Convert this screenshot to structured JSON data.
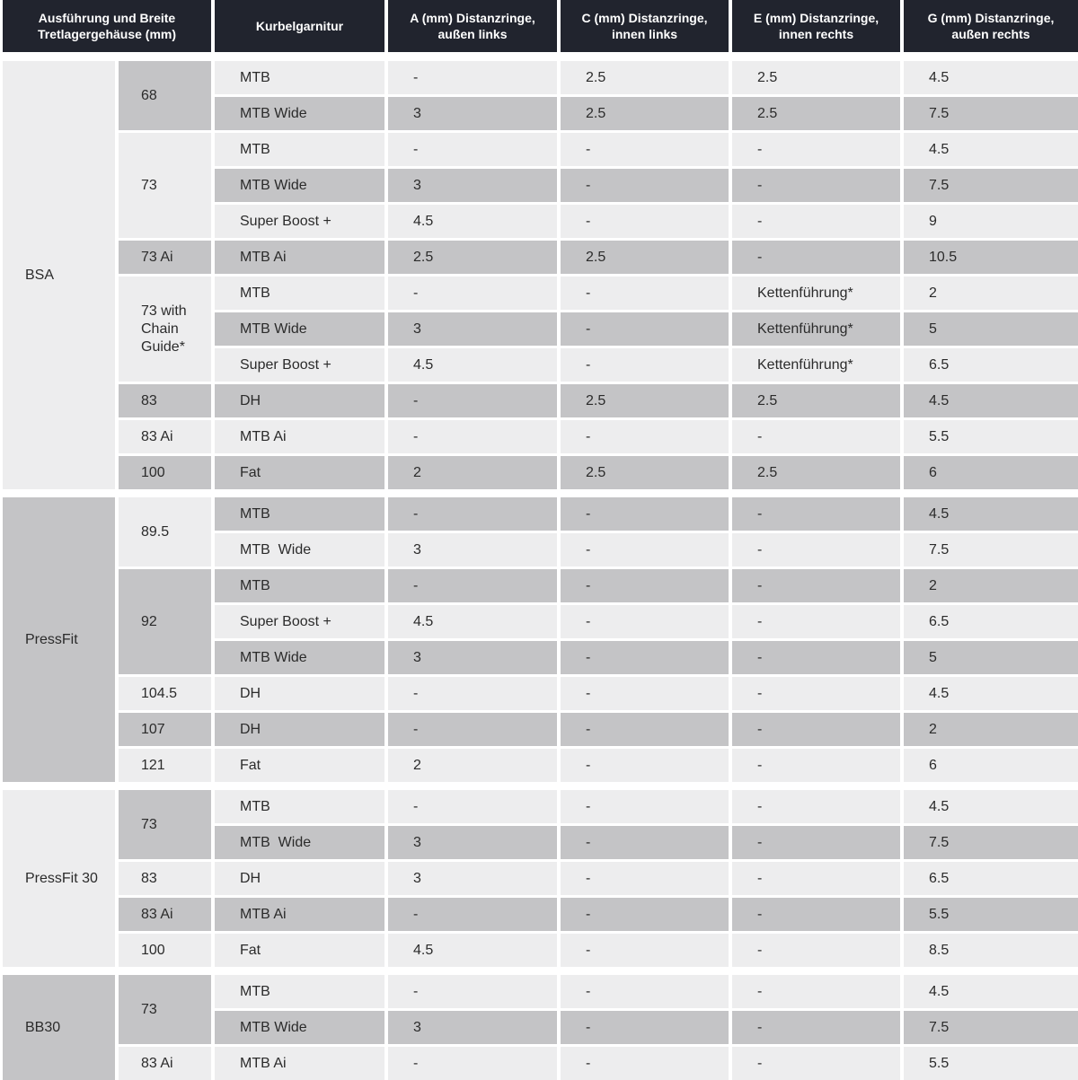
{
  "header": {
    "col_bottombracket": "Ausführung und Breite Tretlagergehäuse (mm)",
    "col_crankset": "Kurbelgarnitur",
    "col_a": "A (mm) Distanzringe, außen links",
    "col_c": "C (mm) Distanzringe, innen links",
    "col_e": "E (mm) Distanzringe, innen rechts",
    "col_g": "G (mm) Distanzringe, außen rechts"
  },
  "colors": {
    "header_bg": "#21242e",
    "header_text": "#ffffff",
    "row_light": "#ededee",
    "row_dark": "#c4c4c6",
    "text": "#2b2b2b",
    "gap": "#ffffff"
  },
  "sections": [
    {
      "label": "BSA",
      "shade": "light",
      "groups": [
        {
          "width": "68",
          "shade": "dark",
          "rows": [
            {
              "crank": "MTB",
              "a": "-",
              "c": "2.5",
              "e": "2.5",
              "g": "4.5",
              "shade": "light"
            },
            {
              "crank": "MTB Wide",
              "a": "3",
              "c": "2.5",
              "e": "2.5",
              "g": "7.5",
              "shade": "dark"
            }
          ]
        },
        {
          "width": "73",
          "shade": "light",
          "rows": [
            {
              "crank": "MTB",
              "a": "-",
              "c": "-",
              "e": "-",
              "g": "4.5",
              "shade": "light"
            },
            {
              "crank": "MTB Wide",
              "a": "3",
              "c": "-",
              "e": "-",
              "g": "7.5",
              "shade": "dark"
            },
            {
              "crank": "Super Boost +",
              "a": "4.5",
              "c": "-",
              "e": "-",
              "g": "9",
              "shade": "light"
            }
          ]
        },
        {
          "width": "73 Ai",
          "shade": "dark",
          "rows": [
            {
              "crank": "MTB Ai",
              "a": "2.5",
              "c": "2.5",
              "e": "-",
              "g": "10.5",
              "shade": "dark"
            }
          ]
        },
        {
          "width": "73 with Chain Guide*",
          "shade": "light",
          "rows": [
            {
              "crank": "MTB",
              "a": "-",
              "c": "-",
              "e": "Kettenführung*",
              "g": "2",
              "shade": "light"
            },
            {
              "crank": "MTB Wide",
              "a": "3",
              "c": "-",
              "e": "Kettenführung*",
              "g": "5",
              "shade": "dark"
            },
            {
              "crank": "Super Boost +",
              "a": "4.5",
              "c": "-",
              "e": "Kettenführung*",
              "g": "6.5",
              "shade": "light"
            }
          ]
        },
        {
          "width": "83",
          "shade": "dark",
          "rows": [
            {
              "crank": "DH",
              "a": "-",
              "c": "2.5",
              "e": "2.5",
              "g": "4.5",
              "shade": "dark"
            }
          ]
        },
        {
          "width": "83 Ai",
          "shade": "light",
          "rows": [
            {
              "crank": "MTB Ai",
              "a": "-",
              "c": "-",
              "e": "-",
              "g": "5.5",
              "shade": "light"
            }
          ]
        },
        {
          "width": "100",
          "shade": "dark",
          "rows": [
            {
              "crank": "Fat",
              "a": "2",
              "c": "2.5",
              "e": "2.5",
              "g": "6",
              "shade": "dark"
            }
          ]
        }
      ]
    },
    {
      "label": "PressFit",
      "shade": "dark",
      "groups": [
        {
          "width": "89.5",
          "shade": "light",
          "rows": [
            {
              "crank": "MTB",
              "a": "-",
              "c": "-",
              "e": "-",
              "g": "4.5",
              "shade": "dark"
            },
            {
              "crank": "MTB  Wide",
              "a": "3",
              "c": "-",
              "e": "-",
              "g": "7.5",
              "shade": "light"
            }
          ]
        },
        {
          "width": "92",
          "shade": "dark",
          "rows": [
            {
              "crank": "MTB",
              "a": "-",
              "c": "-",
              "e": "-",
              "g": "2",
              "shade": "dark"
            },
            {
              "crank": "Super Boost +",
              "a": "4.5",
              "c": "-",
              "e": "-",
              "g": "6.5",
              "shade": "light"
            },
            {
              "crank": "MTB Wide",
              "a": "3",
              "c": "-",
              "e": "-",
              "g": "5",
              "shade": "dark"
            }
          ]
        },
        {
          "width": "104.5",
          "shade": "light",
          "rows": [
            {
              "crank": "DH",
              "a": "-",
              "c": "-",
              "e": "-",
              "g": "4.5",
              "shade": "light"
            }
          ]
        },
        {
          "width": "107",
          "shade": "dark",
          "rows": [
            {
              "crank": "DH",
              "a": "-",
              "c": "-",
              "e": "-",
              "g": "2",
              "shade": "dark"
            }
          ]
        },
        {
          "width": "121",
          "shade": "light",
          "rows": [
            {
              "crank": "Fat",
              "a": "2",
              "c": "-",
              "e": "-",
              "g": "6",
              "shade": "light"
            }
          ]
        }
      ]
    },
    {
      "label": "PressFit 30",
      "shade": "light",
      "groups": [
        {
          "width": "73",
          "shade": "dark",
          "rows": [
            {
              "crank": "MTB",
              "a": "-",
              "c": "-",
              "e": "-",
              "g": "4.5",
              "shade": "light"
            },
            {
              "crank": "MTB  Wide",
              "a": "3",
              "c": "-",
              "e": "-",
              "g": "7.5",
              "shade": "dark"
            }
          ]
        },
        {
          "width": "83",
          "shade": "light",
          "rows": [
            {
              "crank": "DH",
              "a": "3",
              "c": "-",
              "e": "-",
              "g": "6.5",
              "shade": "light"
            }
          ]
        },
        {
          "width": "83 Ai",
          "shade": "dark",
          "rows": [
            {
              "crank": "MTB Ai",
              "a": "-",
              "c": "-",
              "e": "-",
              "g": "5.5",
              "shade": "dark"
            }
          ]
        },
        {
          "width": "100",
          "shade": "light",
          "rows": [
            {
              "crank": "Fat",
              "a": "4.5",
              "c": "-",
              "e": "-",
              "g": "8.5",
              "shade": "light"
            }
          ]
        }
      ]
    },
    {
      "label": "BB30",
      "shade": "dark",
      "groups": [
        {
          "width": "73",
          "shade": "dark",
          "rows": [
            {
              "crank": "MTB",
              "a": "-",
              "c": "-",
              "e": "-",
              "g": "4.5",
              "shade": "light"
            },
            {
              "crank": "MTB Wide",
              "a": "3",
              "c": "-",
              "e": "-",
              "g": "7.5",
              "shade": "dark"
            }
          ]
        },
        {
          "width": "83 Ai",
          "shade": "light",
          "rows": [
            {
              "crank": "MTB Ai",
              "a": "-",
              "c": "-",
              "e": "-",
              "g": "5.5",
              "shade": "light"
            }
          ]
        }
      ]
    }
  ]
}
